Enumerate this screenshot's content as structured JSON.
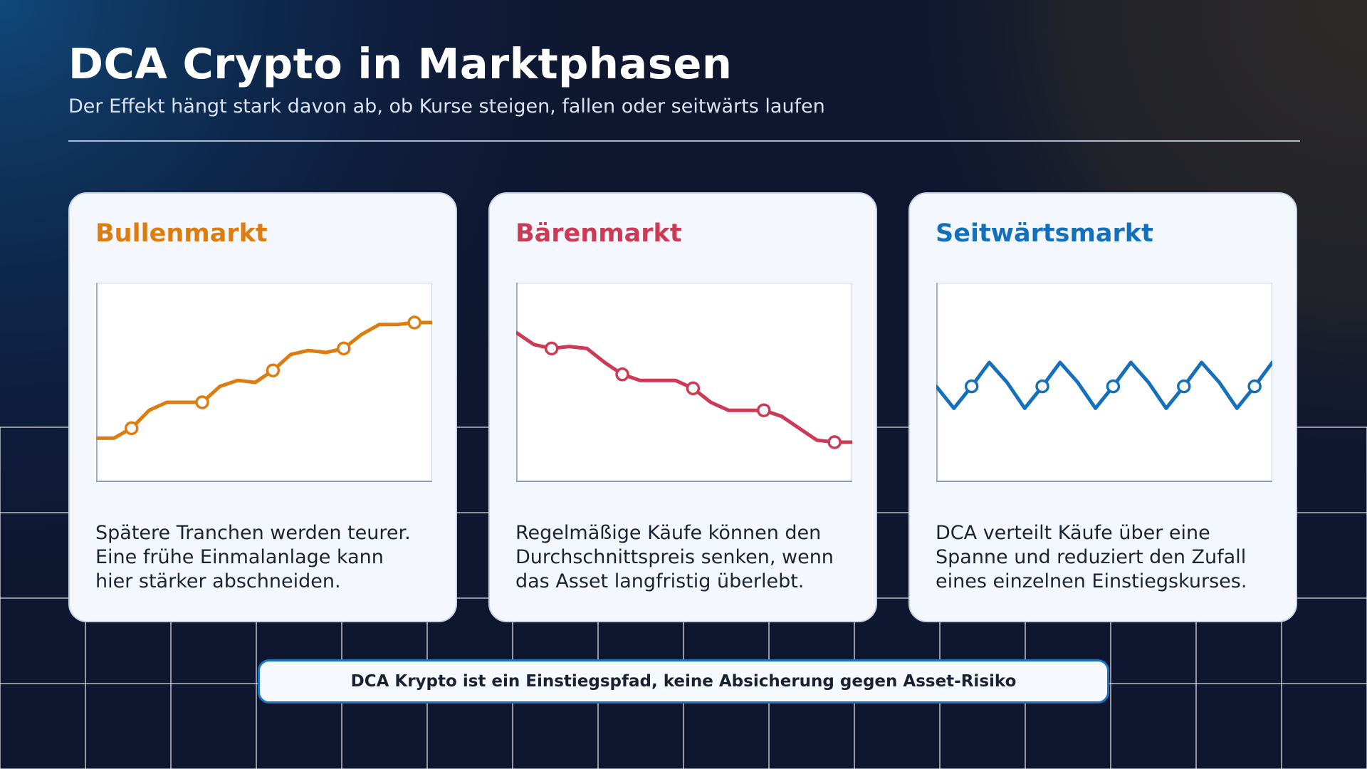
{
  "header": {
    "title": "DCA Crypto in Marktphasen",
    "subtitle": "Der Effekt hängt stark davon ab, ob Kurse steigen, fallen oder seitwärts laufen"
  },
  "colors": {
    "background": "#0f1730",
    "grid_cyan": "#3aa0e0",
    "grid_orange": "#e39a3a",
    "bull": "#de7d0f",
    "bear": "#cc3a55",
    "sideways": "#1470bb"
  },
  "cards": [
    {
      "title": "Bullenmarkt",
      "color": "#de7d0f",
      "text": [
        "Spätere Tranchen werden teurer.",
        "Eine frühe Einmalanlage kann",
        "hier stärker abschneiden."
      ]
    },
    {
      "title": "Bärenmarkt",
      "color": "#cc3a55",
      "text": [
        "Regelmäßige Käufe können den",
        "Durchschnittspreis senken, wenn",
        "das Asset langfristig überlebt."
      ]
    },
    {
      "title": "Seitwärtsmarkt",
      "color": "#1470bb",
      "text": [
        "DCA verteilt Käufe über eine",
        "Spanne und reduziert den Zufall",
        "eines einzelnen Einstiegskurses."
      ]
    }
  ],
  "note": "DCA Krypto ist ein Einstiegspfad, keine Absicherung gegen Asset-Risiko",
  "chart_data": [
    {
      "type": "line",
      "x": [
        0,
        1,
        2,
        3,
        4,
        5,
        6,
        7,
        8,
        9,
        10,
        11,
        12,
        13,
        14,
        15,
        16,
        17,
        18,
        19
      ],
      "values": [
        22,
        22,
        27,
        36,
        40,
        40,
        40,
        48,
        51,
        50,
        56,
        64,
        66,
        65,
        67,
        74,
        79,
        79,
        80,
        80
      ],
      "buy_points": [
        2,
        6,
        10,
        14,
        18
      ],
      "ylim": [
        0,
        100
      ],
      "color": "#de7d0f"
    },
    {
      "type": "line",
      "x": [
        0,
        1,
        2,
        3,
        4,
        5,
        6,
        7,
        8,
        9,
        10,
        11,
        12,
        13,
        14,
        15,
        16,
        17,
        18,
        19
      ],
      "values": [
        75,
        69,
        67,
        68,
        67,
        60,
        54,
        51,
        51,
        51,
        47,
        40,
        36,
        36,
        36,
        33,
        27,
        21,
        20,
        20
      ],
      "buy_points": [
        2,
        6,
        10,
        14,
        18
      ],
      "ylim": [
        0,
        100
      ],
      "color": "#cc3a55"
    },
    {
      "type": "line",
      "x": [
        0,
        1,
        2,
        3,
        4,
        5,
        6,
        7,
        8,
        9,
        10,
        11,
        12,
        13,
        14,
        15,
        16,
        17,
        18,
        19
      ],
      "values": [
        48,
        37,
        48,
        60,
        50,
        37,
        48,
        60,
        50,
        37,
        48,
        60,
        50,
        37,
        48,
        60,
        50,
        37,
        48,
        60
      ],
      "buy_points": [
        2,
        6,
        10,
        14,
        18
      ],
      "ylim": [
        0,
        100
      ],
      "color": "#1470bb"
    }
  ]
}
